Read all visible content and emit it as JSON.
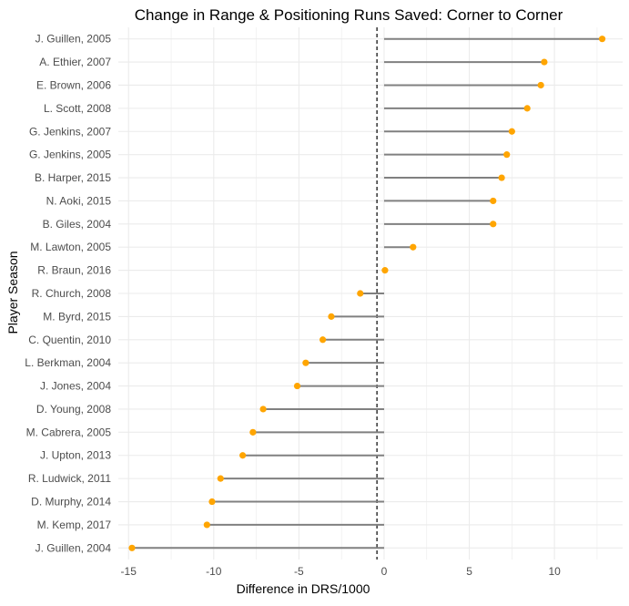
{
  "chart_data": {
    "type": "lollipop",
    "title": "Change in Range & Positioning Runs Saved: Corner to Corner",
    "xlabel": "Difference in DRS/1000",
    "ylabel": "Player Season",
    "xlim": [
      -15.6,
      14
    ],
    "xticks": [
      -15,
      -10,
      -5,
      0,
      5,
      10
    ],
    "grid": true,
    "reference_line": -0.42,
    "colors": {
      "point": "#FFA500",
      "segment": "#808080",
      "grid": "#EBEBEB",
      "reference": "#000000"
    },
    "categories": [
      "J. Guillen, 2005",
      "A. Ethier, 2007",
      "E. Brown, 2006",
      "L. Scott, 2008",
      "G. Jenkins, 2007",
      "G. Jenkins, 2005",
      "B. Harper, 2015",
      "N. Aoki, 2015",
      "B. Giles, 2004",
      "M. Lawton, 2005",
      "R. Braun, 2016",
      "R. Church, 2008",
      "M. Byrd, 2015",
      "C. Quentin, 2010",
      "L. Berkman, 2004",
      "J. Jones, 2004",
      "D. Young, 2008",
      "M. Cabrera, 2005",
      "J. Upton, 2013",
      "R. Ludwick, 2011",
      "D. Murphy, 2014",
      "M. Kemp, 2017",
      "J. Guillen, 2004"
    ],
    "values": [
      12.8,
      9.4,
      9.2,
      8.4,
      7.5,
      7.2,
      6.9,
      6.4,
      6.4,
      1.7,
      0.05,
      -1.4,
      -3.1,
      -3.6,
      -4.6,
      -5.1,
      -7.1,
      -7.7,
      -8.3,
      -9.6,
      -10.1,
      -10.4,
      -14.8
    ]
  }
}
